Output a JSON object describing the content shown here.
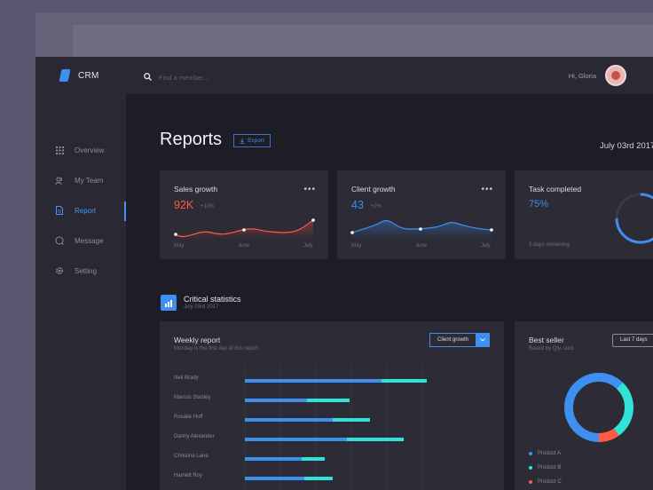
{
  "app": {
    "name": "CRM"
  },
  "search": {
    "placeholder": "Find a member..."
  },
  "user": {
    "greeting": "Hi, Gloria"
  },
  "sidebar": {
    "items": [
      {
        "label": "Overview",
        "icon": "grid-icon",
        "active": false
      },
      {
        "label": "My Team",
        "icon": "team-icon",
        "active": false
      },
      {
        "label": "Report",
        "icon": "document-icon",
        "active": true
      },
      {
        "label": "Message",
        "icon": "message-icon",
        "active": false
      },
      {
        "label": "Setting",
        "icon": "gear-icon",
        "active": false
      }
    ]
  },
  "page": {
    "title": "Reports",
    "export_label": "Export",
    "date": "July 03rd  2017"
  },
  "cards": {
    "sales": {
      "title": "Sales growth",
      "value": "92K",
      "delta": "+10%",
      "x_labels": [
        "May",
        "June",
        "July"
      ],
      "accent": "#ff5a45"
    },
    "client": {
      "title": "Client growth",
      "value": "43",
      "delta": "+2%",
      "x_labels": [
        "May",
        "June",
        "July"
      ],
      "accent": "#3d8ff0"
    },
    "task": {
      "title": "Task completed",
      "value": "75%",
      "remaining": "3 days remaining",
      "progress": 0.75,
      "accent": "#3d8ff0"
    }
  },
  "section": {
    "title": "Critical statistics",
    "date": "July 03rd  2017"
  },
  "weekly": {
    "title": "Weekly report",
    "subtitle": "Monday is the first day of this report",
    "dropdown": "Client growth",
    "rows": [
      {
        "name": "Neil Brady",
        "blue": 0.48,
        "teal": 0.64
      },
      {
        "name": "Marcus Stanley",
        "blue": 0.22,
        "teal": 0.37
      },
      {
        "name": "Rosalie Huff",
        "blue": 0.31,
        "teal": 0.44
      },
      {
        "name": "Danny Alexander",
        "blue": 0.36,
        "teal": 0.56
      },
      {
        "name": "Christina Lane",
        "blue": 0.2,
        "teal": 0.28
      },
      {
        "name": "Harriett Roy",
        "blue": 0.21,
        "teal": 0.31
      }
    ]
  },
  "bestseller": {
    "title": "Best seller",
    "subtitle": "Based by Qty. sold.",
    "dropdown": "Last 7 days",
    "products": [
      {
        "label": "Product A",
        "color": "#3d8ff0",
        "share": 0.62
      },
      {
        "label": "Product B",
        "color": "#2fe3d8",
        "share": 0.28
      },
      {
        "label": "Product C",
        "color": "#ff5a45",
        "share": 0.1
      }
    ]
  },
  "colors": {
    "blue": "#3d8ff0",
    "teal": "#2fe3d8",
    "red": "#ff5a45"
  }
}
